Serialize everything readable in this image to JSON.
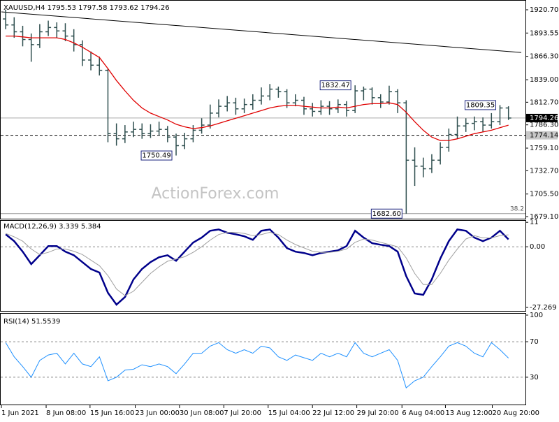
{
  "chart_data": [
    {
      "type": "ohlc",
      "title": "XAUUSD,H4  1795.53 1797.58 1793.62 1794.26",
      "watermark": "ActionForex.com",
      "ylim": [
        1677.5,
        1930.5
      ],
      "yticks": [
        {
          "value": 1920.7,
          "label": "1920.70"
        },
        {
          "value": 1893.55,
          "label": "1893.55"
        },
        {
          "value": 1866.3,
          "label": "1866.30"
        },
        {
          "value": 1839,
          "label": "1839.00"
        },
        {
          "value": 1812.7,
          "label": "1812.70"
        },
        {
          "value": 1786.3,
          "label": "1786.30"
        },
        {
          "value": 1759.1,
          "label": "1759.10"
        },
        {
          "value": 1732.7,
          "label": "1732.70"
        },
        {
          "value": 1705.5,
          "label": "1705.50"
        },
        {
          "value": 1679.1,
          "label": "1679.10"
        }
      ],
      "color": "#2f4f4f",
      "ohlc": {
        "open": [
          1910,
          1903,
          1895,
          1886,
          1880,
          1895,
          1900,
          1896,
          1890,
          1880,
          1862,
          1856,
          1850,
          1776,
          1770,
          1778,
          1781,
          1776,
          1779,
          1781,
          1772,
          1762,
          1770,
          1780,
          1786,
          1800,
          1808,
          1812,
          1805,
          1810,
          1815,
          1820,
          1828,
          1825,
          1812,
          1815,
          1805,
          1802,
          1808,
          1805,
          1810,
          1803,
          1826,
          1828,
          1818,
          1813,
          1825,
          1812,
          1745,
          1738,
          1735,
          1745,
          1760,
          1775,
          1785,
          1788,
          1790,
          1786,
          1790,
          1806
        ],
        "high": [
          1921,
          1912,
          1902,
          1893,
          1904,
          1908,
          1906,
          1905,
          1898,
          1885,
          1872,
          1866,
          1852,
          1788,
          1786,
          1790,
          1788,
          1787,
          1790,
          1785,
          1776,
          1777,
          1786,
          1794,
          1810,
          1816,
          1820,
          1818,
          1817,
          1822,
          1830,
          1834,
          1831,
          1828,
          1822,
          1819,
          1812,
          1815,
          1814,
          1816,
          1814,
          1832.47,
          1831,
          1830,
          1822,
          1832,
          1828,
          1815,
          1760,
          1748,
          1752,
          1766,
          1782,
          1796,
          1794,
          1796,
          1795,
          1800,
          1809.35,
          1808
        ],
        "low": [
          1898,
          1888,
          1878,
          1860,
          1876,
          1890,
          1888,
          1884,
          1872,
          1855,
          1850,
          1844,
          1766,
          1762,
          1765,
          1772,
          1770,
          1771,
          1774,
          1766,
          1750.49,
          1758,
          1766,
          1776,
          1782,
          1795,
          1802,
          1798,
          1800,
          1804,
          1810,
          1815,
          1818,
          1806,
          1808,
          1798,
          1796,
          1798,
          1798,
          1800,
          1796,
          1800,
          1815,
          1810,
          1806,
          1810,
          1800,
          1682.6,
          1715,
          1725,
          1730,
          1740,
          1755,
          1770,
          1778,
          1780,
          1778,
          1782,
          1786,
          1792
        ],
        "close": [
          1903,
          1895,
          1886,
          1880,
          1895,
          1900,
          1896,
          1890,
          1880,
          1862,
          1856,
          1850,
          1776,
          1770,
          1778,
          1781,
          1776,
          1779,
          1781,
          1772,
          1762,
          1770,
          1780,
          1786,
          1800,
          1808,
          1812,
          1805,
          1810,
          1815,
          1820,
          1828,
          1825,
          1812,
          1815,
          1805,
          1802,
          1808,
          1805,
          1810,
          1803,
          1826,
          1828,
          1818,
          1813,
          1825,
          1812,
          1745,
          1738,
          1735,
          1745,
          1760,
          1775,
          1785,
          1788,
          1790,
          1786,
          1790,
          1806,
          1794.26
        ]
      },
      "ma": {
        "color": "#e00000",
        "values": [
          1890,
          1890,
          1889,
          1888,
          1888,
          1888,
          1888,
          1886,
          1882,
          1877,
          1871,
          1865,
          1852,
          1838,
          1826,
          1815,
          1806,
          1800,
          1796,
          1792,
          1787,
          1784,
          1782,
          1783,
          1785,
          1788,
          1791,
          1794,
          1797,
          1800,
          1803,
          1806,
          1808,
          1809,
          1809,
          1808,
          1807,
          1806,
          1806,
          1807,
          1806,
          1808,
          1810,
          1811,
          1811,
          1812,
          1810,
          1801,
          1790,
          1780,
          1772,
          1768,
          1768,
          1770,
          1773,
          1776,
          1778,
          1780,
          1783,
          1786
        ]
      },
      "trendline": {
        "start": 1918.3,
        "end": 1870.8
      },
      "price_lines": [
        {
          "value": 1794.26,
          "style": "solid"
        },
        {
          "value": 1774.14,
          "style": "dashed"
        }
      ],
      "fib_level": {
        "ratio": 38.2,
        "price": 1682.6
      },
      "annotations": [
        {
          "x": 41,
          "value": 1832.47
        },
        {
          "x": 58,
          "value": 1809.35
        },
        {
          "x": 20,
          "value": 1750.49
        },
        {
          "x": 47,
          "value": 1682.6,
          "label": "1682.60"
        }
      ]
    },
    {
      "type": "line",
      "title": "MACD(12,26,9) 3.339 5.384",
      "ylim": [
        -27.269,
        12
      ],
      "yticks": [
        11,
        {
          "value": 0,
          "label": "0.00"
        },
        -27.269
      ],
      "levels": [
        0
      ],
      "series": [
        {
          "color": "#00008b",
          "width": 2.5,
          "values": [
            5.6,
            2.5,
            -2.2,
            -7.8,
            -3.8,
            0.3,
            0.3,
            -2.2,
            -3.8,
            -6.9,
            -10,
            -11.6,
            -20.7,
            -26,
            -22.6,
            -14.7,
            -10,
            -6.9,
            -4.7,
            -3.8,
            -6.3,
            -2.2,
            1.9,
            4.1,
            7.2,
            7.8,
            6.3,
            5.6,
            4.7,
            3.1,
            7.2,
            7.8,
            4.1,
            -0.6,
            -2.2,
            -2.8,
            -3.8,
            -2.8,
            -2.2,
            -1.6,
            0.3,
            7.2,
            4.1,
            1.6,
            0.9,
            0.3,
            -2.2,
            -13.2,
            -21,
            -21.6,
            -14.7,
            -5.3,
            2.5,
            7.8,
            7.2,
            4.1,
            2.5,
            4.1,
            7.2,
            3.339
          ]
        },
        {
          "color": "#a0a0a0",
          "width": 1,
          "values": [
            6,
            4.5,
            2.5,
            -1,
            -3.5,
            -2.5,
            -1,
            -1,
            -2,
            -3.5,
            -6,
            -8.5,
            -13,
            -19,
            -22,
            -20,
            -16,
            -12,
            -9,
            -6.5,
            -5.5,
            -4.5,
            -2.5,
            0,
            3,
            5.5,
            6.5,
            6.5,
            6,
            5,
            5.5,
            6.5,
            5.5,
            3,
            1,
            -0.5,
            -2,
            -2.5,
            -2.5,
            -2,
            -1,
            2,
            3.5,
            3,
            2,
            1,
            0,
            -5,
            -12,
            -17,
            -17,
            -12,
            -6,
            -1,
            3.5,
            5,
            4,
            4,
            5,
            5.384
          ]
        }
      ]
    },
    {
      "type": "line",
      "title": "RSI(14) 51.5539",
      "ylim": [
        0,
        100
      ],
      "yticks": [
        100,
        70,
        30
      ],
      "levels": [
        70,
        30
      ],
      "series": [
        {
          "color": "#1e90ff",
          "width": 1,
          "values": [
            69,
            53,
            42,
            30,
            49,
            55,
            57,
            45,
            57,
            45,
            42,
            53,
            26,
            30,
            38,
            39,
            44,
            42,
            45,
            42,
            34,
            45,
            57,
            57,
            65,
            69,
            61,
            57,
            61,
            57,
            65,
            63,
            53,
            49,
            55,
            52,
            49,
            57,
            53,
            57,
            53,
            69,
            57,
            53,
            57,
            61,
            49,
            18,
            26,
            30,
            42,
            53,
            65,
            69,
            65,
            57,
            53,
            69,
            61,
            51.5539
          ]
        }
      ],
      "xlim": [
        -0.5,
        60.5
      ],
      "xticks": [
        {
          "value": -0.5,
          "label": "1 Jun 2021"
        },
        {
          "value": 4.75,
          "label": "8 Jun 08:00"
        },
        {
          "value": 9.9,
          "label": "15 Jun 16:00"
        },
        {
          "value": 15.2,
          "label": "23 Jun 00:00"
        },
        {
          "value": 20.4,
          "label": "30 Jun 08:00"
        },
        {
          "value": 25.6,
          "label": "7 Jul 20:00"
        },
        {
          "value": 30.8,
          "label": "15 Jul 04:00"
        },
        {
          "value": 36,
          "label": "22 Jul 12:00"
        },
        {
          "value": 41.2,
          "label": "29 Jul 20:00"
        },
        {
          "value": 46.5,
          "label": "6 Aug 04:00"
        },
        {
          "value": 51.6,
          "label": "13 Aug 12:00"
        },
        {
          "value": 57.1,
          "label": "20 Aug 20:00"
        }
      ]
    }
  ]
}
